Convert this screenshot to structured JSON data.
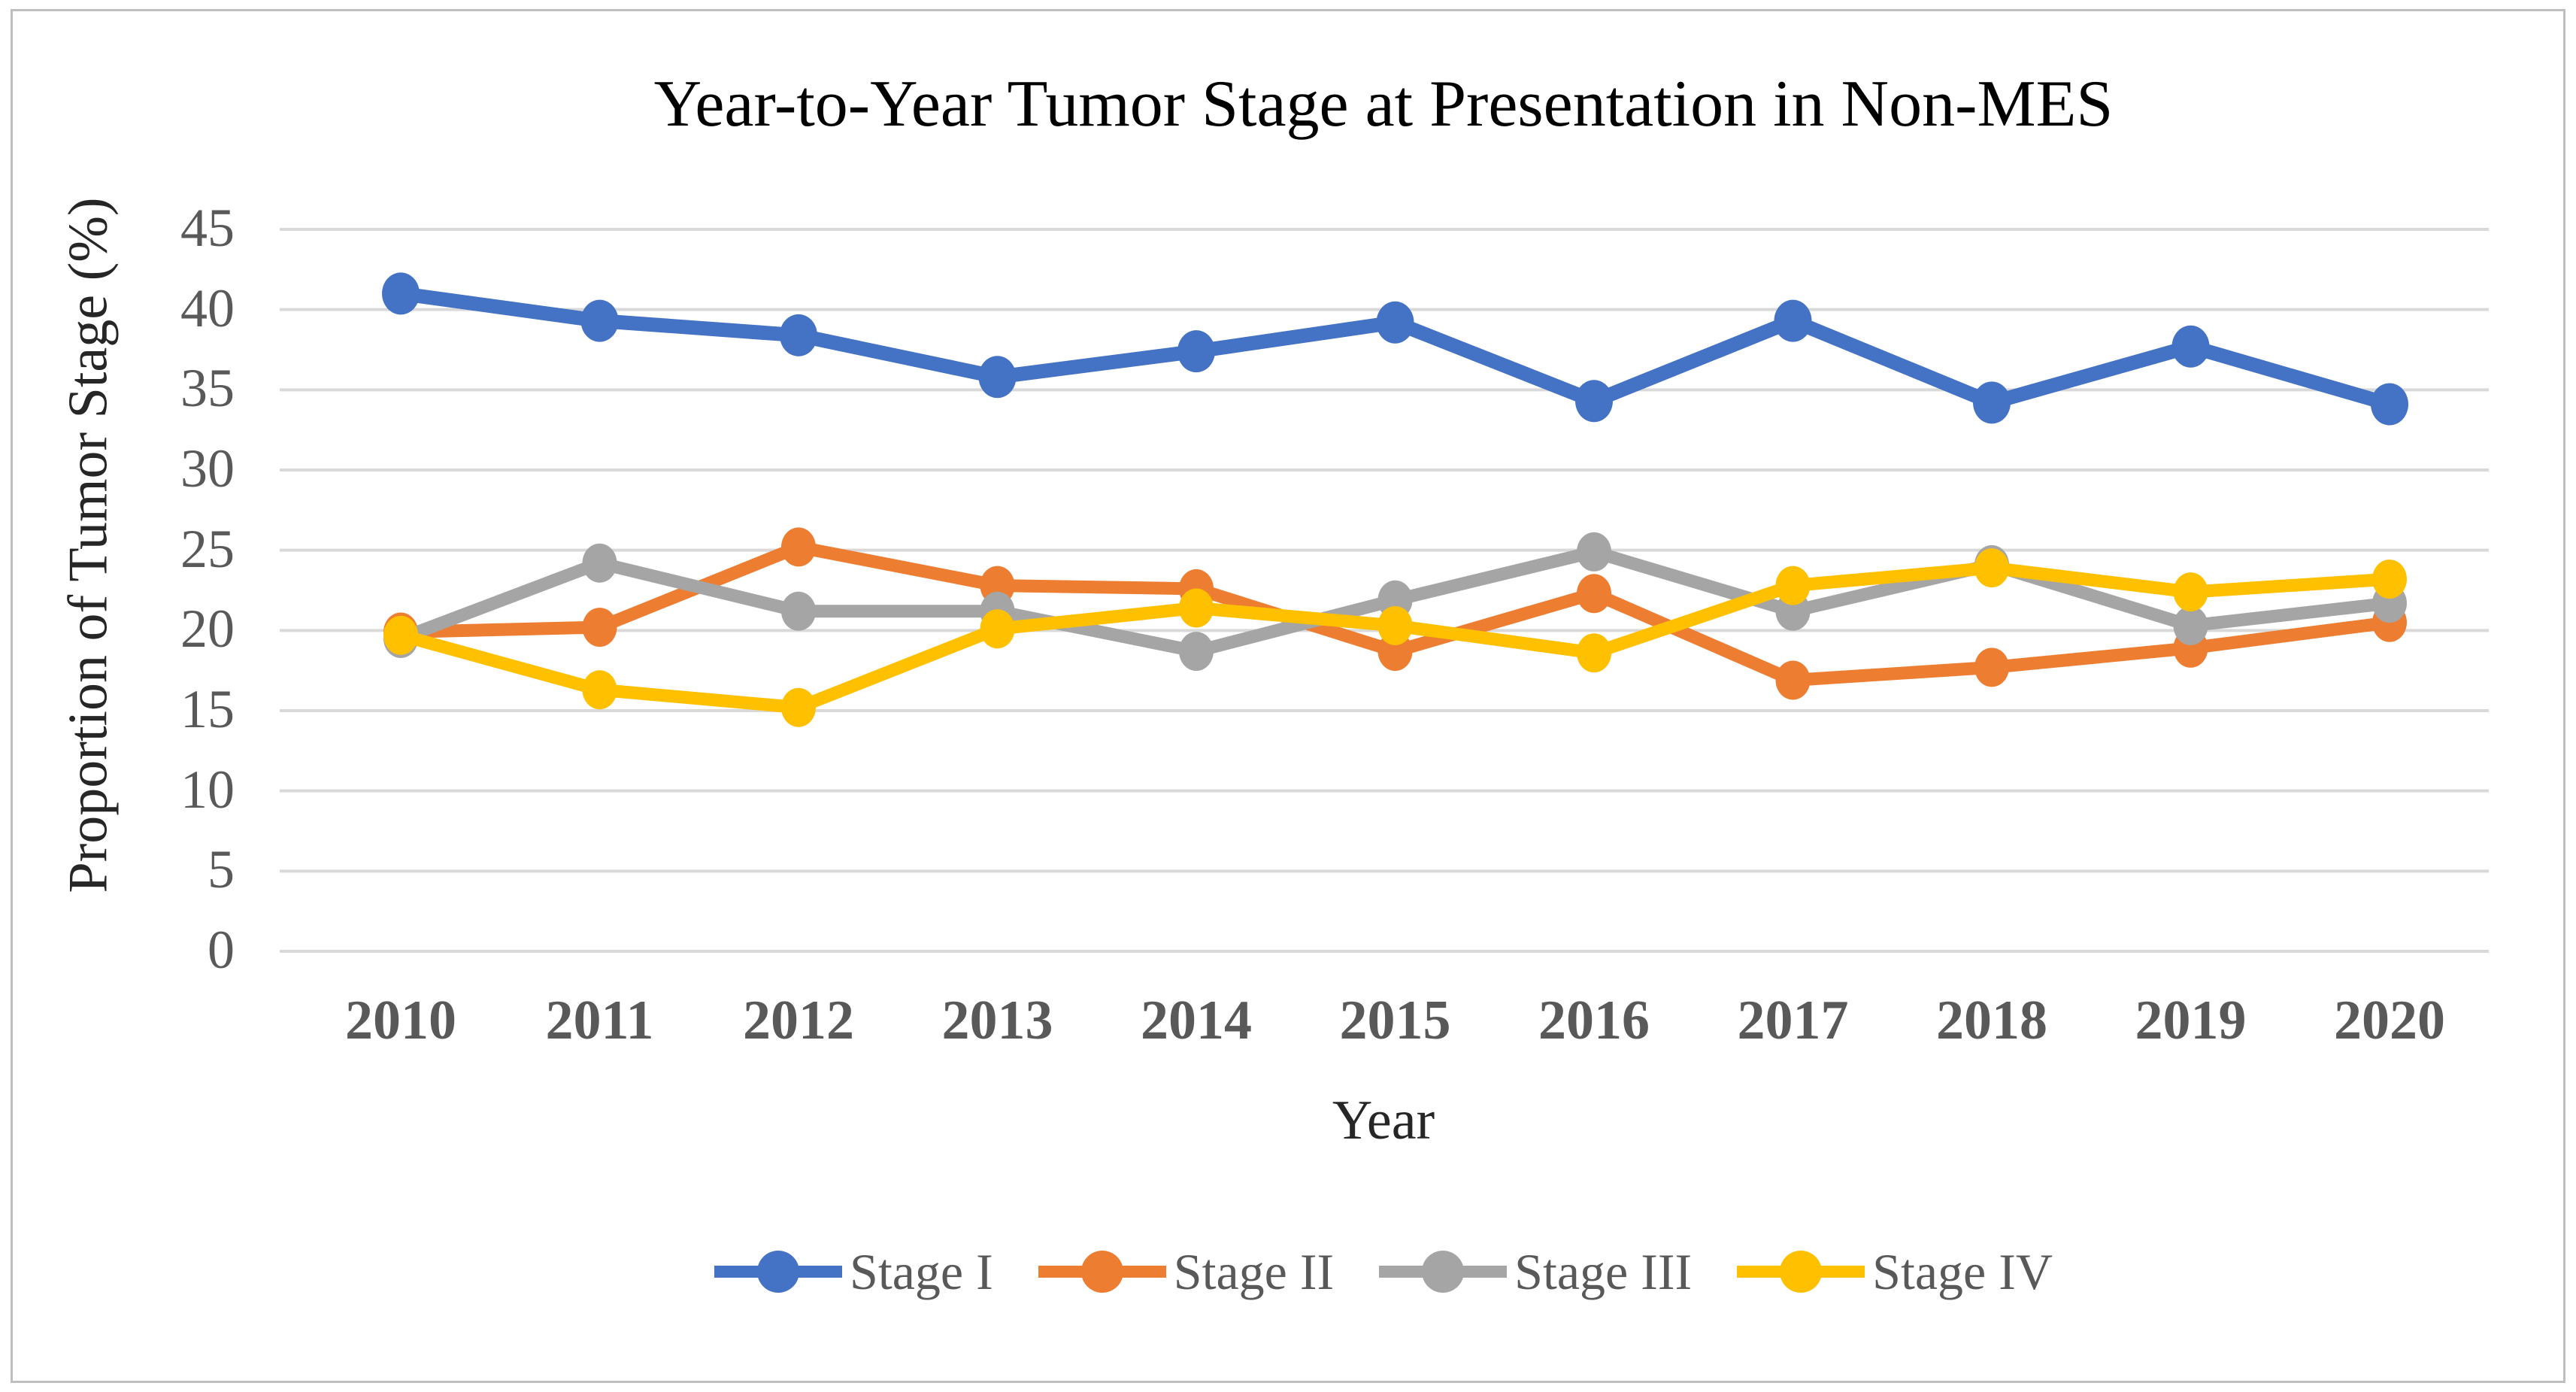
{
  "figure": {
    "title": "Year-to-Year Tumor Stage at Presentation in Non-MES",
    "x_axis_title": "Year",
    "y_axis_title": "Proportion of Tumor Stage (%)"
  },
  "chart_data": {
    "type": "line",
    "title": "Year-to-Year Tumor Stage at Presentation in Non-MES",
    "xlabel": "Year",
    "ylabel": "Proportion of Tumor Stage (%)",
    "categories": [
      "2010",
      "2011",
      "2012",
      "2013",
      "2014",
      "2015",
      "2016",
      "2017",
      "2018",
      "2019",
      "2020"
    ],
    "ylim": [
      0,
      45
    ],
    "ytick_step": 5,
    "grid": "horizontal",
    "gridline_color": "#d9d9d9",
    "legend_position": "bottom",
    "series": [
      {
        "name": "Stage I",
        "color": "#4472C4",
        "values": [
          41.0,
          39.3,
          38.4,
          35.8,
          37.4,
          39.2,
          34.3,
          39.3,
          34.2,
          37.7,
          34.1
        ]
      },
      {
        "name": "Stage II",
        "color": "#ED7D31",
        "values": [
          19.9,
          20.2,
          25.2,
          22.8,
          22.6,
          18.7,
          22.3,
          16.9,
          17.7,
          18.9,
          20.5
        ]
      },
      {
        "name": "Stage III",
        "color": "#A5A5A5",
        "values": [
          19.5,
          24.2,
          21.2,
          21.2,
          18.7,
          21.9,
          24.9,
          21.2,
          24.1,
          20.3,
          21.7
        ]
      },
      {
        "name": "Stage IV",
        "color": "#FFC000",
        "values": [
          19.7,
          16.3,
          15.2,
          20.1,
          21.4,
          20.3,
          18.6,
          22.8,
          23.9,
          22.4,
          23.2
        ]
      }
    ]
  }
}
